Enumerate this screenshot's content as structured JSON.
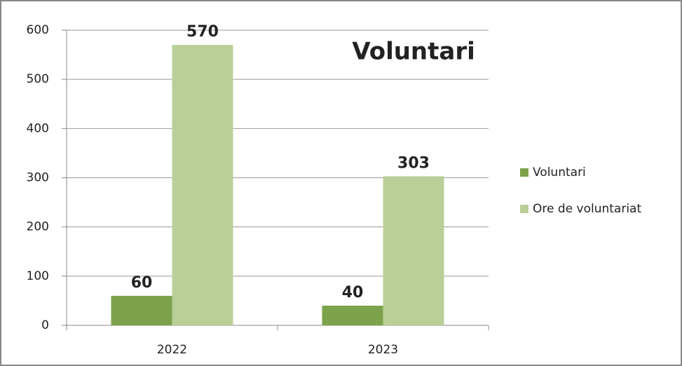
{
  "chart_data": {
    "type": "bar",
    "title": "Voluntari",
    "categories": [
      "2022",
      "2023"
    ],
    "series": [
      {
        "name": "Voluntari",
        "color": "#7ca24b",
        "values": [
          60,
          40
        ]
      },
      {
        "name": "Ore de voluntariat",
        "color": "#bacf97",
        "values": [
          570,
          303
        ]
      }
    ],
    "ylim": [
      0,
      600
    ],
    "yticks": [
      0,
      100,
      200,
      300,
      400,
      500,
      600
    ],
    "grid": true,
    "legend": "right"
  }
}
